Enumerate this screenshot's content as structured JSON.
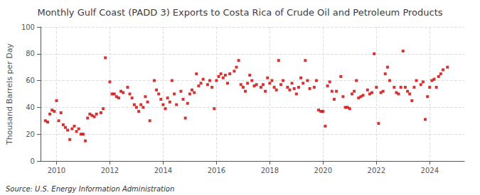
{
  "chart_data": {
    "type": "scatter",
    "title": "Monthly Gulf Coast (PADD 3) Exports to Costa Rica of Crude Oil and Petroleum Products",
    "ylabel": "Thousand Barrels per Day",
    "annotations": [
      "Source: U.S. Energy Information Administration"
    ],
    "color": "#cc0000",
    "marker": "square",
    "grid": true,
    "xlim": [
      2009.4,
      2025.3
    ],
    "xticks": [
      2010,
      2012,
      2014,
      2016,
      2018,
      2020,
      2022,
      2024
    ],
    "ylim": [
      0,
      100
    ],
    "yticks": [
      0,
      20,
      40,
      60,
      80,
      100
    ],
    "x": [
      2009.583,
      2009.667,
      2009.75,
      2009.833,
      2009.917,
      2010.0,
      2010.083,
      2010.167,
      2010.25,
      2010.333,
      2010.417,
      2010.5,
      2010.583,
      2010.667,
      2010.75,
      2010.833,
      2010.917,
      2011.0,
      2011.083,
      2011.167,
      2011.25,
      2011.333,
      2011.417,
      2011.5,
      2011.667,
      2011.75,
      2011.833,
      2012.0,
      2012.083,
      2012.167,
      2012.25,
      2012.333,
      2012.417,
      2012.5,
      2012.667,
      2012.75,
      2012.833,
      2012.917,
      2013.0,
      2013.083,
      2013.167,
      2013.25,
      2013.333,
      2013.417,
      2013.5,
      2013.667,
      2013.75,
      2013.833,
      2013.917,
      2014.0,
      2014.083,
      2014.167,
      2014.25,
      2014.333,
      2014.417,
      2014.5,
      2014.667,
      2014.75,
      2014.833,
      2014.917,
      2015.0,
      2015.083,
      2015.167,
      2015.25,
      2015.333,
      2015.417,
      2015.5,
      2015.667,
      2015.75,
      2015.833,
      2015.917,
      2016.0,
      2016.083,
      2016.167,
      2016.25,
      2016.333,
      2016.417,
      2016.5,
      2016.667,
      2016.75,
      2016.833,
      2016.917,
      2017.0,
      2017.083,
      2017.167,
      2017.25,
      2017.333,
      2017.417,
      2017.5,
      2017.667,
      2017.75,
      2017.833,
      2017.917,
      2018.0,
      2018.083,
      2018.167,
      2018.25,
      2018.333,
      2018.417,
      2018.5,
      2018.667,
      2018.75,
      2018.833,
      2018.917,
      2019.0,
      2019.083,
      2019.167,
      2019.25,
      2019.333,
      2019.417,
      2019.5,
      2019.667,
      2019.75,
      2019.833,
      2019.917,
      2020.0,
      2020.083,
      2020.167,
      2020.25,
      2020.333,
      2020.417,
      2020.5,
      2020.667,
      2020.75,
      2020.833,
      2020.917,
      2021.0,
      2021.083,
      2021.167,
      2021.25,
      2021.333,
      2021.417,
      2021.5,
      2021.667,
      2021.75,
      2021.833,
      2021.917,
      2022.0,
      2022.083,
      2022.167,
      2022.25,
      2022.333,
      2022.417,
      2022.5,
      2022.667,
      2022.75,
      2022.833,
      2022.917,
      2023.0,
      2023.083,
      2023.167,
      2023.25,
      2023.333,
      2023.417,
      2023.5,
      2023.667,
      2023.75,
      2023.833,
      2023.917,
      2024.0,
      2024.083,
      2024.167,
      2024.25,
      2024.333,
      2024.417,
      2024.5,
      2024.667
    ],
    "values": [
      30,
      29,
      35,
      38,
      37,
      45,
      30,
      36,
      27,
      25,
      23,
      16,
      24,
      26,
      22,
      24,
      20,
      20,
      15,
      32,
      35,
      34,
      33,
      35,
      36,
      39,
      77,
      59,
      50,
      50,
      48,
      47,
      52,
      51,
      55,
      50,
      47,
      42,
      40,
      37,
      42,
      40,
      48,
      44,
      30,
      60,
      53,
      50,
      46,
      42,
      39,
      47,
      44,
      60,
      50,
      42,
      52,
      46,
      32,
      43,
      50,
      53,
      51,
      65,
      56,
      58,
      61,
      57,
      60,
      55,
      39,
      60,
      63,
      65,
      62,
      64,
      58,
      65,
      67,
      70,
      75,
      57,
      55,
      52,
      58,
      64,
      60,
      56,
      57,
      55,
      57,
      52,
      62,
      58,
      60,
      55,
      53,
      75,
      57,
      60,
      55,
      53,
      58,
      54,
      50,
      55,
      62,
      58,
      75,
      60,
      54,
      55,
      60,
      38,
      37,
      37,
      26,
      56,
      59,
      52,
      46,
      52,
      63,
      48,
      40,
      40,
      39,
      50,
      52,
      60,
      47,
      48,
      49,
      53,
      50,
      51,
      80,
      55,
      28,
      51,
      52,
      65,
      70,
      60,
      55,
      51,
      50,
      55,
      82,
      55,
      52,
      50,
      45,
      55,
      60,
      57,
      59,
      31,
      48,
      55,
      60,
      61,
      55,
      63,
      65,
      68,
      70
    ]
  }
}
